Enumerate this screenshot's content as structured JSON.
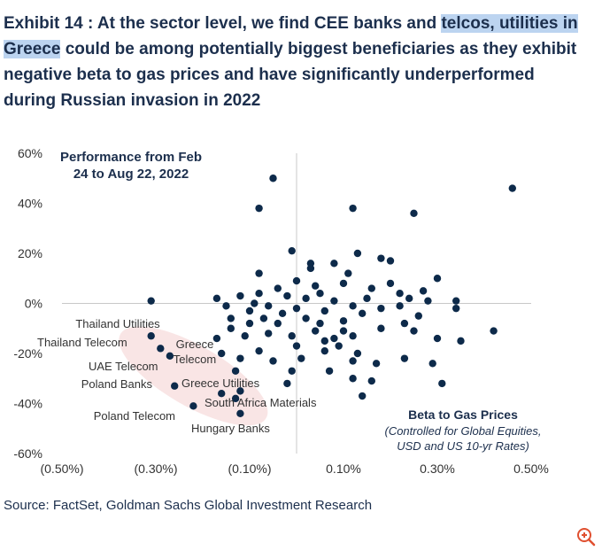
{
  "title": {
    "part1": "Exhibit 14 : At the sector level, we find CEE banks and ",
    "highlight": "telcos, utilities in Greece",
    "part2": " could be among potentially biggest beneficiaries as they exhibit negative beta to gas prices and have significantly underperformed during Russian invasion in 2022"
  },
  "source": "Source: FactSet, Goldman Sachs Global Investment Research",
  "colors": {
    "points": "#0d2a4a",
    "title": "#1c2f4d",
    "highlight": "#bcd4f0",
    "ellipse": "#f7dcdc"
  },
  "chart_data": {
    "type": "scatter",
    "title": "Performance from Feb 24 to Aug 22, 2022",
    "title_lines": [
      "Performance from Feb",
      "24 to Aug 22, 2022"
    ],
    "xlabel": "Beta to Gas Prices",
    "xlabel_sub": [
      "(Controlled for Global Equities,",
      "USD and US 10-yr Rates)"
    ],
    "xlim": [
      -0.5,
      0.5
    ],
    "ylim": [
      -60,
      60
    ],
    "xticks": [
      -0.5,
      -0.3,
      -0.1,
      0.1,
      0.3,
      0.5
    ],
    "xtick_labels": [
      "(0.50%)",
      "(0.30%)",
      "(0.10%)",
      "0.10%",
      "0.30%",
      "0.50%"
    ],
    "yticks": [
      60,
      40,
      20,
      0,
      -20,
      -40,
      -60
    ],
    "ytick_labels": [
      "60%",
      "40%",
      "20%",
      "0%",
      "-20%",
      "-40%",
      "-60%"
    ],
    "grid": false,
    "annotations": [
      {
        "text": "Thailand Utilities",
        "x": -0.29,
        "y": -13
      },
      {
        "text": "Thailand Telecom",
        "x": -0.28,
        "y": -18
      },
      {
        "text": "Greece Telecom",
        "x": -0.17,
        "y": -14
      },
      {
        "text": "UAE Telecom",
        "x": -0.26,
        "y": -21
      },
      {
        "text": "Poland Banks",
        "x": -0.26,
        "y": -33
      },
      {
        "text": "Greece Utilities",
        "x": -0.12,
        "y": -35
      },
      {
        "text": "South Africa Materials",
        "x": -0.13,
        "y": -38
      },
      {
        "text": "Poland Telecom",
        "x": -0.22,
        "y": -41
      },
      {
        "text": "Hungary Banks",
        "x": -0.12,
        "y": -44
      }
    ],
    "points": [
      {
        "x": -0.31,
        "y": 1
      },
      {
        "x": -0.31,
        "y": -13
      },
      {
        "x": -0.29,
        "y": -18
      },
      {
        "x": -0.27,
        "y": -21
      },
      {
        "x": -0.26,
        "y": -33
      },
      {
        "x": -0.22,
        "y": -41
      },
      {
        "x": -0.17,
        "y": -14
      },
      {
        "x": -0.16,
        "y": -36
      },
      {
        "x": -0.12,
        "y": -35
      },
      {
        "x": -0.12,
        "y": -44
      },
      {
        "x": -0.13,
        "y": -38
      },
      {
        "x": -0.05,
        "y": 50
      },
      {
        "x": -0.08,
        "y": 38
      },
      {
        "x": 0.46,
        "y": 46
      },
      {
        "x": 0.12,
        "y": 38
      },
      {
        "x": 0.25,
        "y": 36
      },
      {
        "x": -0.01,
        "y": 21
      },
      {
        "x": 0.13,
        "y": 20
      },
      {
        "x": 0.18,
        "y": 18
      },
      {
        "x": 0.2,
        "y": 17
      },
      {
        "x": -0.08,
        "y": 12
      },
      {
        "x": 0.03,
        "y": 16
      },
      {
        "x": 0.11,
        "y": 12
      },
      {
        "x": 0.08,
        "y": 16
      },
      {
        "x": 0.03,
        "y": 14
      },
      {
        "x": -0.08,
        "y": 4
      },
      {
        "x": -0.04,
        "y": 6
      },
      {
        "x": 0,
        "y": 9
      },
      {
        "x": 0.05,
        "y": 4
      },
      {
        "x": 0.1,
        "y": 8
      },
      {
        "x": 0.16,
        "y": 6
      },
      {
        "x": 0.24,
        "y": 2
      },
      {
        "x": 0.3,
        "y": 10
      },
      {
        "x": 0.34,
        "y": 1
      },
      {
        "x": 0.34,
        "y": -2
      },
      {
        "x": -0.17,
        "y": 2
      },
      {
        "x": -0.15,
        "y": -1
      },
      {
        "x": -0.12,
        "y": 3
      },
      {
        "x": -0.1,
        "y": -3
      },
      {
        "x": -0.14,
        "y": -6
      },
      {
        "x": -0.07,
        "y": -6
      },
      {
        "x": -0.03,
        "y": -4
      },
      {
        "x": 0.02,
        "y": -6
      },
      {
        "x": 0.06,
        "y": -3
      },
      {
        "x": 0.1,
        "y": -7
      },
      {
        "x": 0.14,
        "y": -4
      },
      {
        "x": 0.18,
        "y": -2
      },
      {
        "x": 0.22,
        "y": -1
      },
      {
        "x": -0.14,
        "y": -10
      },
      {
        "x": -0.11,
        "y": -13
      },
      {
        "x": -0.06,
        "y": -12
      },
      {
        "x": -0.01,
        "y": -13
      },
      {
        "x": 0.04,
        "y": -11
      },
      {
        "x": 0.08,
        "y": -14
      },
      {
        "x": 0.12,
        "y": -13
      },
      {
        "x": 0.18,
        "y": -10
      },
      {
        "x": 0.25,
        "y": -11
      },
      {
        "x": 0.3,
        "y": -14
      },
      {
        "x": 0.35,
        "y": -15
      },
      {
        "x": 0.42,
        "y": -11
      },
      {
        "x": -0.12,
        "y": -22
      },
      {
        "x": -0.08,
        "y": -19
      },
      {
        "x": -0.05,
        "y": -23
      },
      {
        "x": 0.01,
        "y": -22
      },
      {
        "x": 0.06,
        "y": -19
      },
      {
        "x": 0.12,
        "y": -23
      },
      {
        "x": 0.17,
        "y": -24
      },
      {
        "x": 0.23,
        "y": -22
      },
      {
        "x": 0.29,
        "y": -24
      },
      {
        "x": -0.13,
        "y": -27
      },
      {
        "x": -0.02,
        "y": -32
      },
      {
        "x": 0.07,
        "y": -27
      },
      {
        "x": 0.12,
        "y": -30
      },
      {
        "x": 0.16,
        "y": -31
      },
      {
        "x": 0.14,
        "y": -37
      },
      {
        "x": 0.31,
        "y": -32
      },
      {
        "x": -0.04,
        "y": -8
      },
      {
        "x": 0.0,
        "y": -2
      },
      {
        "x": 0.02,
        "y": 2
      },
      {
        "x": 0.08,
        "y": 1
      },
      {
        "x": 0.12,
        "y": -1
      },
      {
        "x": 0.2,
        "y": 8
      },
      {
        "x": 0.27,
        "y": 5
      },
      {
        "x": 0.26,
        "y": -5
      },
      {
        "x": 0.15,
        "y": 2
      },
      {
        "x": -0.02,
        "y": 3
      },
      {
        "x": 0.04,
        "y": 7
      },
      {
        "x": -0.06,
        "y": -1
      },
      {
        "x": 0.09,
        "y": -17
      },
      {
        "x": -0.1,
        "y": -8
      },
      {
        "x": 0.0,
        "y": -17
      },
      {
        "x": 0.05,
        "y": -8
      },
      {
        "x": 0.1,
        "y": -11
      },
      {
        "x": 0.22,
        "y": 4
      },
      {
        "x": 0.28,
        "y": 1
      },
      {
        "x": -0.16,
        "y": -20
      },
      {
        "x": -0.01,
        "y": -27
      },
      {
        "x": 0.23,
        "y": -8
      },
      {
        "x": 0.06,
        "y": -15
      },
      {
        "x": -0.09,
        "y": 0
      },
      {
        "x": 0.13,
        "y": -20
      }
    ]
  }
}
